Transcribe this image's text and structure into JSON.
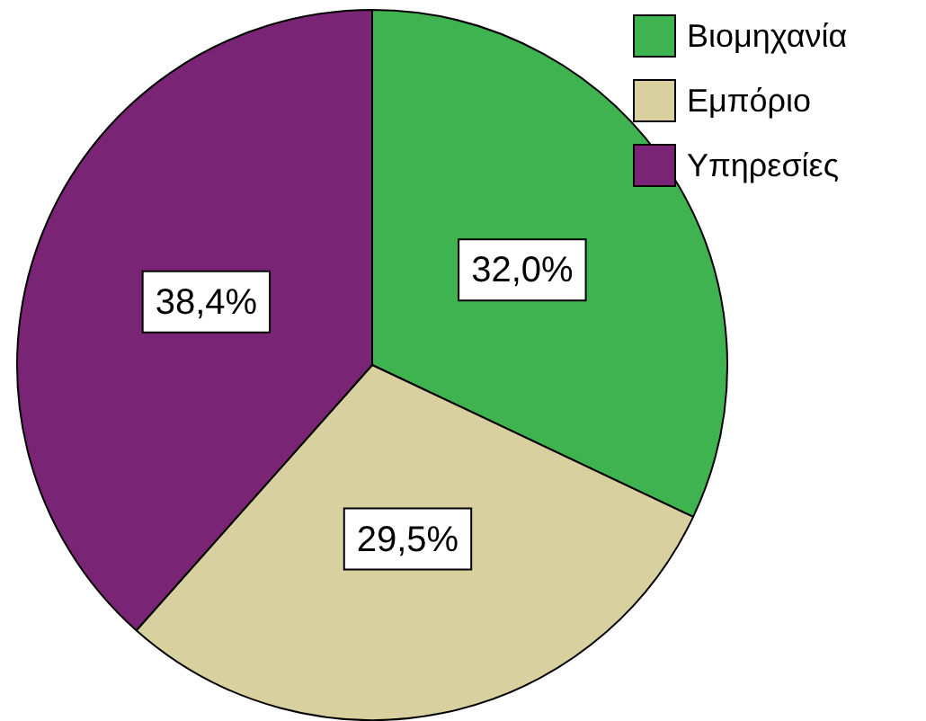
{
  "chart_data": {
    "type": "pie",
    "categories": [
      "Βιομηχανία",
      "Εμπόριο",
      "Υπηρεσίες"
    ],
    "values": [
      32.0,
      29.5,
      38.4
    ],
    "colors": [
      "#3fb34f",
      "#d8d09e",
      "#7a2475"
    ],
    "value_labels": [
      "32,0%",
      "29,5%",
      "38,4%"
    ],
    "legend": "top right"
  }
}
